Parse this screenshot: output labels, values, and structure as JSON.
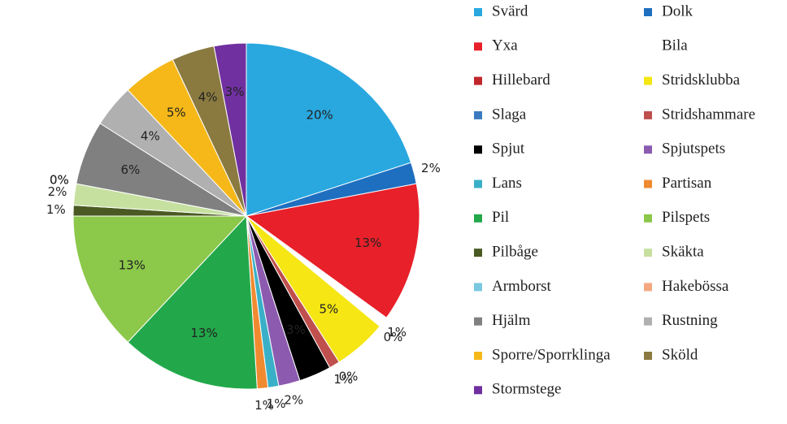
{
  "chart_data": {
    "type": "pie",
    "categories": [
      "Svärd",
      "Dolk",
      "Yxa",
      "Bila",
      "Hillebard",
      "Stridsklubba",
      "Slaga",
      "Stridshammare",
      "Spjut",
      "Spjutspets",
      "Lans",
      "Partisan",
      "Pil",
      "Pilspets",
      "Pilbåge",
      "Skäkta",
      "Armborst",
      "Hakebössa",
      "Hjälm",
      "Rustning",
      "Sporre/Sporrklinga",
      "Sköld",
      "Stormstege"
    ],
    "values": [
      20,
      2,
      13,
      1,
      0,
      5,
      0,
      1,
      3,
      2,
      1,
      1,
      13,
      13,
      1,
      2,
      0,
      0,
      6,
      4,
      5,
      4,
      3
    ],
    "value_labels": [
      "20%",
      "2%",
      "13%",
      "1%",
      "0%",
      "5%",
      "0%",
      "1%",
      "3%",
      "2%",
      "1%",
      "1%",
      "13%",
      "13%",
      "1%",
      "2%",
      "0%",
      "0%",
      "6%",
      "4%",
      "5%",
      "4%",
      "3%"
    ],
    "colors": [
      "#29a8e0",
      "#1f6fc0",
      "#e8202a",
      "#ffffff",
      "#c0272d",
      "#f5e614",
      "#3a7ac0",
      "#c0504d",
      "#000000",
      "#8c5bb0",
      "#3ab0c8",
      "#f08a30",
      "#22a84a",
      "#8cc84a",
      "#4a5a22",
      "#c6e0a0",
      "#7ac8e0",
      "#f4a880",
      "#808080",
      "#b0b0b0",
      "#f5b818",
      "#8a7a40",
      "#7030a0"
    ]
  }
}
